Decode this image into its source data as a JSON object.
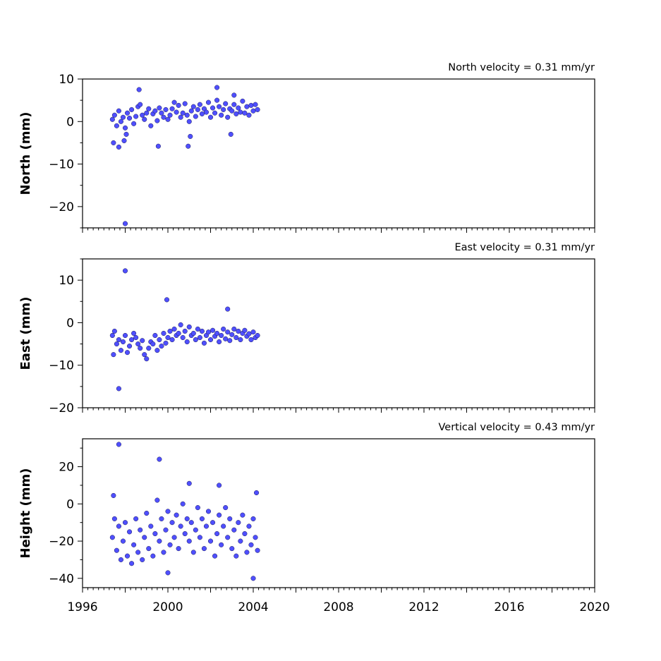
{
  "chart_data": [
    {
      "type": "scatter",
      "annotation": "North velocity = 0.31 mm/yr",
      "ylabel": "North (mm)",
      "xlim": [
        1996,
        2020
      ],
      "ylim": [
        -25,
        10
      ],
      "yticks": [
        10,
        0,
        -10,
        -20
      ],
      "ytick_labels": [
        "10",
        "0",
        "−10",
        "−20"
      ],
      "series": [
        {
          "color": "#4f4fff",
          "x": [
            1997.4,
            1997.5,
            1997.6,
            1997.7,
            1997.8,
            1997.9,
            1998.0,
            1998.1,
            1998.2,
            1998.3,
            1998.4,
            1998.5,
            1998.6,
            1998.7,
            1998.8,
            1998.9,
            1999.0,
            1999.1,
            1999.2,
            1999.3,
            1999.4,
            1999.5,
            1999.6,
            1999.7,
            1999.8,
            1999.9,
            2000.0,
            2000.1,
            2000.2,
            2000.3,
            2000.4,
            2000.5,
            2000.6,
            2000.7,
            2000.8,
            2000.9,
            2001.0,
            2001.1,
            2001.2,
            2001.3,
            2001.4,
            2001.5,
            2001.6,
            2001.7,
            2001.8,
            2001.9,
            2002.0,
            2002.1,
            2002.2,
            2002.3,
            2002.4,
            2002.5,
            2002.6,
            2002.7,
            2002.8,
            2002.9,
            2003.0,
            2003.1,
            2003.2,
            2003.3,
            2003.4,
            2003.5,
            2003.6,
            2003.7,
            2003.8,
            2003.9,
            2004.0,
            2004.1,
            2004.2,
            1997.45,
            1997.7,
            1997.95,
            1998.05,
            1998.65,
            1999.55,
            2000.95,
            2001.05,
            2002.3,
            2002.95,
            2003.1,
            1998.0
          ],
          "y": [
            0.5,
            1.5,
            -1.0,
            2.5,
            0.0,
            1.0,
            -1.5,
            2.0,
            0.8,
            2.8,
            -0.5,
            1.2,
            3.5,
            4.0,
            1.5,
            0.5,
            2.0,
            3.0,
            -1.0,
            1.8,
            2.5,
            0.2,
            3.2,
            2.0,
            1.0,
            2.8,
            0.5,
            1.5,
            3.0,
            4.5,
            2.2,
            3.8,
            1.0,
            2.0,
            4.2,
            1.5,
            0.0,
            2.5,
            3.5,
            1.2,
            2.8,
            4.0,
            1.8,
            3.0,
            2.2,
            4.5,
            1.0,
            3.2,
            2.0,
            5.0,
            3.5,
            1.5,
            2.8,
            4.2,
            1.0,
            3.0,
            2.5,
            4.0,
            1.8,
            3.2,
            2.2,
            4.8,
            2.0,
            3.5,
            1.5,
            3.8,
            2.5,
            4.0,
            2.8,
            -5.0,
            -6.0,
            -4.5,
            -3.0,
            7.5,
            -5.8,
            -5.8,
            -3.5,
            8.0,
            -3.0,
            6.2,
            -24.0
          ]
        }
      ]
    },
    {
      "type": "scatter",
      "annotation": "East velocity = 0.31 mm/yr",
      "ylabel": "East (mm)",
      "xlim": [
        1996,
        2020
      ],
      "ylim": [
        -20,
        15
      ],
      "yticks": [
        10,
        0,
        -10,
        -20
      ],
      "ytick_labels": [
        "10",
        "0",
        "−10",
        "−20"
      ],
      "series": [
        {
          "color": "#4f4fff",
          "x": [
            1997.4,
            1997.5,
            1997.6,
            1997.7,
            1997.8,
            1997.9,
            1998.0,
            1998.1,
            1998.2,
            1998.3,
            1998.4,
            1998.5,
            1998.6,
            1998.7,
            1998.8,
            1998.9,
            1999.0,
            1999.1,
            1999.2,
            1999.3,
            1999.4,
            1999.5,
            1999.6,
            1999.7,
            1999.8,
            1999.9,
            2000.0,
            2000.1,
            2000.2,
            2000.3,
            2000.4,
            2000.5,
            2000.6,
            2000.7,
            2000.8,
            2000.9,
            2001.0,
            2001.1,
            2001.2,
            2001.3,
            2001.4,
            2001.5,
            2001.6,
            2001.7,
            2001.8,
            2001.9,
            2002.0,
            2002.1,
            2002.2,
            2002.3,
            2002.4,
            2002.5,
            2002.6,
            2002.7,
            2002.8,
            2002.9,
            2003.0,
            2003.1,
            2003.2,
            2003.3,
            2003.4,
            2003.5,
            2003.6,
            2003.7,
            2003.8,
            2003.9,
            2004.0,
            2004.1,
            2004.2,
            1997.7,
            1998.0,
            1999.95,
            2002.8,
            1997.45
          ],
          "y": [
            -3.0,
            -2.0,
            -5.0,
            -4.0,
            -6.5,
            -4.5,
            -3.0,
            -7.0,
            -5.5,
            -4.0,
            -2.5,
            -3.5,
            -5.0,
            -6.0,
            -4.2,
            -7.5,
            -8.5,
            -6.0,
            -4.5,
            -5.0,
            -3.0,
            -6.5,
            -4.0,
            -5.5,
            -2.5,
            -4.8,
            -3.5,
            -2.0,
            -4.0,
            -1.5,
            -3.0,
            -2.5,
            -0.5,
            -3.5,
            -2.0,
            -4.5,
            -1.0,
            -3.0,
            -2.5,
            -4.0,
            -1.5,
            -3.5,
            -2.0,
            -4.8,
            -3.0,
            -2.2,
            -4.0,
            -1.8,
            -3.2,
            -2.5,
            -4.5,
            -3.0,
            -1.5,
            -3.8,
            -2.2,
            -4.2,
            -2.8,
            -1.5,
            -3.5,
            -2.0,
            -4.0,
            -2.5,
            -1.8,
            -3.2,
            -2.6,
            -4.0,
            -2.2,
            -3.5,
            -3.0,
            -15.5,
            12.2,
            5.4,
            3.2,
            -7.5
          ]
        }
      ]
    },
    {
      "type": "scatter",
      "annotation": "Vertical velocity = 0.43 mm/yr",
      "ylabel": "Height (mm)",
      "xlim": [
        1996,
        2020
      ],
      "ylim": [
        -45,
        35
      ],
      "yticks": [
        20,
        0,
        -20,
        -40
      ],
      "ytick_labels": [
        "20",
        "0",
        "−20",
        "−40"
      ],
      "xticks": [
        1996,
        2000,
        2004,
        2008,
        2012,
        2016,
        2020
      ],
      "xtick_labels": [
        "1996",
        "2000",
        "2004",
        "2008",
        "2012",
        "2016",
        "2020"
      ],
      "series": [
        {
          "color": "#4f4fff",
          "x": [
            1997.4,
            1997.5,
            1997.6,
            1997.7,
            1997.8,
            1997.9,
            1998.0,
            1998.1,
            1998.2,
            1998.3,
            1998.4,
            1998.5,
            1998.6,
            1998.7,
            1998.8,
            1998.9,
            1999.0,
            1999.1,
            1999.2,
            1999.3,
            1999.4,
            1999.5,
            1999.6,
            1999.7,
            1999.8,
            1999.9,
            2000.0,
            2000.1,
            2000.2,
            2000.3,
            2000.4,
            2000.5,
            2000.6,
            2000.7,
            2000.8,
            2000.9,
            2001.0,
            2001.1,
            2001.2,
            2001.3,
            2001.4,
            2001.5,
            2001.6,
            2001.7,
            2001.8,
            2001.9,
            2002.0,
            2002.1,
            2002.2,
            2002.3,
            2002.4,
            2002.5,
            2002.6,
            2002.7,
            2002.8,
            2002.9,
            2003.0,
            2003.1,
            2003.2,
            2003.3,
            2003.4,
            2003.5,
            2003.6,
            2003.7,
            2003.8,
            2003.9,
            2004.0,
            2004.1,
            2004.2,
            1997.7,
            1999.6,
            2000.0,
            2001.0,
            2002.4,
            2004.0,
            2004.15,
            1997.45
          ],
          "y": [
            -18.0,
            -8.0,
            -25.0,
            -12.0,
            -30.0,
            -20.0,
            -10.0,
            -28.0,
            -15.0,
            -32.0,
            -22.0,
            -8.0,
            -26.0,
            -14.0,
            -30.0,
            -18.0,
            -5.0,
            -24.0,
            -12.0,
            -28.0,
            -16.0,
            2.0,
            -20.0,
            -8.0,
            -26.0,
            -14.0,
            -4.0,
            -22.0,
            -10.0,
            -18.0,
            -6.0,
            -24.0,
            -12.0,
            0.0,
            -16.0,
            -8.0,
            -20.0,
            -10.0,
            -26.0,
            -14.0,
            -2.0,
            -18.0,
            -8.0,
            -24.0,
            -12.0,
            -4.0,
            -20.0,
            -10.0,
            -28.0,
            -16.0,
            -6.0,
            -22.0,
            -12.0,
            -2.0,
            -18.0,
            -8.0,
            -24.0,
            -14.0,
            -28.0,
            -10.0,
            -20.0,
            -6.0,
            -16.0,
            -26.0,
            -12.0,
            -22.0,
            -8.0,
            -18.0,
            -25.0,
            32.0,
            24.0,
            -37.0,
            11.0,
            10.0,
            -40.0,
            6.0,
            4.5
          ]
        }
      ]
    }
  ]
}
